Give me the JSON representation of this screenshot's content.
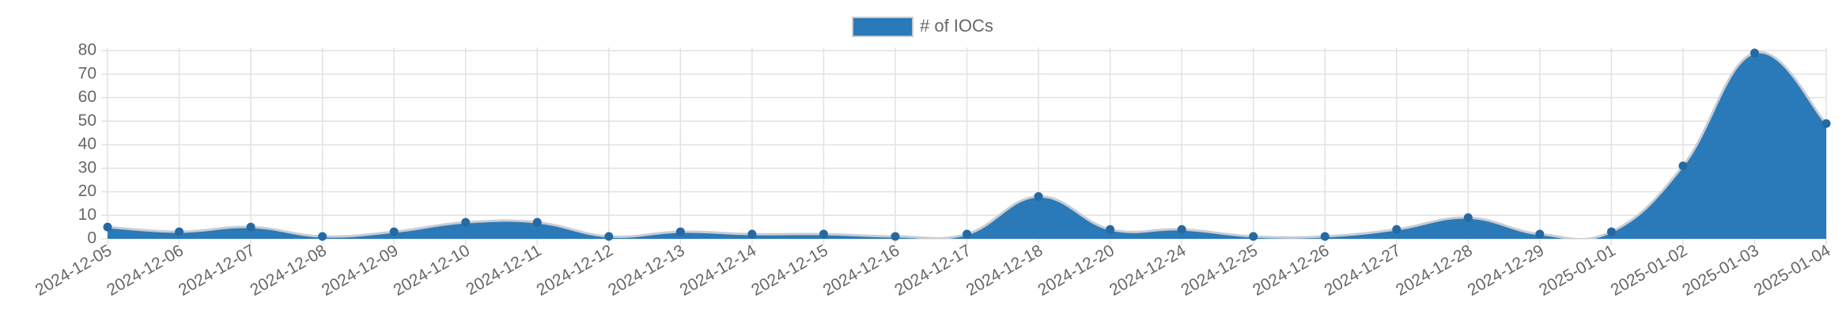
{
  "chart_data": {
    "type": "area",
    "series": [
      {
        "name": "# of IOCs",
        "color": "#2a7ab9",
        "values": [
          5,
          3,
          5,
          1,
          3,
          7,
          7,
          1,
          3,
          2,
          2,
          1,
          2,
          18,
          4,
          4,
          1,
          1,
          4,
          9,
          2,
          3,
          31,
          79,
          49
        ]
      }
    ],
    "categories": [
      "2024-12-05",
      "2024-12-06",
      "2024-12-07",
      "2024-12-08",
      "2024-12-09",
      "2024-12-10",
      "2024-12-11",
      "2024-12-12",
      "2024-12-13",
      "2024-12-14",
      "2024-12-15",
      "2024-12-16",
      "2024-12-17",
      "2024-12-18",
      "2024-12-20",
      "2024-12-24",
      "2024-12-25",
      "2024-12-26",
      "2024-12-27",
      "2024-12-28",
      "2024-12-29",
      "2025-01-01",
      "2025-01-02",
      "2025-01-03",
      "2025-01-04"
    ],
    "ylim": [
      0,
      80
    ],
    "yticks": [
      0,
      10,
      20,
      30,
      40,
      50,
      60,
      70,
      80
    ],
    "grid": true,
    "legend": "top"
  }
}
